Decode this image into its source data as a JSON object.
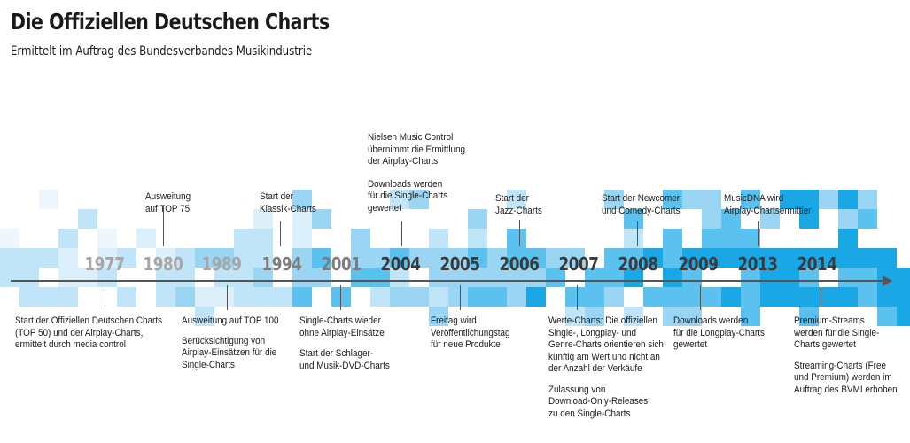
{
  "title": "Die Offiziellen Deutschen Charts",
  "subtitle": "Ermittelt im Auftrag des Bundesverbandes Musikindustrie",
  "colors": {
    "axis": "#555555",
    "year_light": "#a6a6a6",
    "year_mid": "#7d7d7d",
    "year_dark": "#3a3a3a",
    "tile_palette": [
      "#eef7fd",
      "#dcf0fb",
      "#c0e5f8",
      "#9ad6f4",
      "#5bc1ee",
      "#1aa7e6"
    ]
  },
  "years": [
    "1977",
    "1980",
    "1989",
    "1994",
    "2001",
    "2004",
    "2005",
    "2006",
    "2007",
    "2008",
    "2009",
    "2013",
    "2014"
  ],
  "events_above": [
    {
      "lines": [
        "Ausweitung",
        "auf TOP 75"
      ]
    },
    {
      "lines": [
        "Start der",
        "Klassik-Charts"
      ]
    },
    {
      "lines": [
        "Nielsen Music Control",
        "übernimmt die Ermittlung",
        "der Airplay-Charts"
      ],
      "lines2": [
        "Downloads werden",
        "für die Single-Charts",
        "gewertet"
      ]
    },
    {
      "lines": [
        "Start  der",
        "Jazz-Charts"
      ]
    },
    {
      "lines": [
        "Start der Newcomer",
        "und Comedy-Charts"
      ]
    },
    {
      "lines": [
        "MusicDNA wird",
        "Airplay-Chartsermittler"
      ]
    }
  ],
  "events_below": [
    {
      "lines": [
        "Start der Offiziellen Deutschen Charts",
        "(TOP 50) und der Airplay-Charts,",
        "ermittelt durch media control"
      ]
    },
    {
      "lines": [
        "Ausweitung auf TOP 100"
      ],
      "lines2": [
        "Berücksichtigung von",
        "Airplay-Einsätzen für die",
        "Single-Charts"
      ]
    },
    {
      "lines": [
        "Single-Charts wieder",
        "ohne Airplay-Einsätze"
      ],
      "lines2": [
        "Start der Schlager-",
        "und Musik-DVD-Charts"
      ]
    },
    {
      "lines": [
        "Freitag wird",
        "Veröffentlichungstag",
        "für neue Produkte"
      ]
    },
    {
      "lines": [
        "Werte-Charts: Die offiziellen",
        "Single-, Longplay- und",
        "Genre-Charts orientieren sich",
        "künftig am Wert und nicht an",
        "der Anzahl der Verkäufe"
      ],
      "lines2": [
        "Zulassung von",
        "Download-Only-Releases",
        "zu den Single-Charts"
      ]
    },
    {
      "lines": [
        "Downloads werden",
        "für die Longplay-Charts",
        "gewertet"
      ]
    },
    {
      "lines": [
        "Premium-Streams",
        "werden für die Single-",
        "Charts gewertet"
      ],
      "lines2": [
        "Streaming-Charts (Free",
        "und Premium) werden im",
        "Auftrag des BVMI erhoben"
      ]
    }
  ]
}
